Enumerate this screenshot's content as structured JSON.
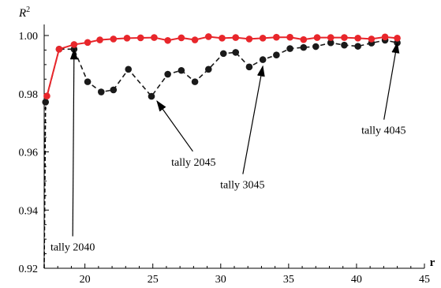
{
  "chart_data": {
    "type": "line",
    "xlabel": "r",
    "ylabel": "R",
    "ylabel_superscript": "2",
    "xlim": [
      17,
      45
    ],
    "ylim": [
      0.92,
      1.0
    ],
    "xticks": [
      20,
      25,
      30,
      35,
      40,
      45
    ],
    "xtick_labels": [
      "20",
      "25",
      "30",
      "35",
      "40",
      "45"
    ],
    "yticks": [
      0.92,
      0.94,
      0.96,
      0.98,
      1.0
    ],
    "ytick_labels": [
      "0.92",
      "0.94",
      "0.96",
      "0.98",
      "1.00"
    ],
    "grid": false,
    "series": [
      {
        "color": "#e8262b",
        "line": "solid",
        "x": [
          17.2,
          18.1,
          19.2,
          20.2,
          21.1,
          22.1,
          23.1,
          24.1,
          25.1,
          26.1,
          27.1,
          28.1,
          29.1,
          30.1,
          31.1,
          32.1,
          33.1,
          34.1,
          35.1,
          36.1,
          37.1,
          38.1,
          39.1,
          40.1,
          41.1,
          42.1,
          43.0
        ],
        "y": [
          0.9792,
          0.9953,
          0.9969,
          0.9976,
          0.9985,
          0.9988,
          0.9991,
          0.9992,
          0.9993,
          0.9983,
          0.9992,
          0.9985,
          0.9996,
          0.9991,
          0.9993,
          0.9988,
          0.9991,
          0.9994,
          0.9994,
          0.9986,
          0.9993,
          0.9993,
          0.9993,
          0.9991,
          0.9988,
          0.9995,
          0.9991
        ]
      },
      {
        "color": "#1a1a1a",
        "line": "dashed",
        "x": [
          17.1,
          18.1,
          19.2,
          20.2,
          21.2,
          22.1,
          23.2,
          24.9,
          26.1,
          27.1,
          28.1,
          29.1,
          30.2,
          31.1,
          32.1,
          33.1,
          34.1,
          35.1,
          36.1,
          37.0,
          38.1,
          39.1,
          40.1,
          41.1,
          42.1,
          43.0
        ],
        "y": [
          0.9771,
          0.9953,
          0.9953,
          0.9841,
          0.9806,
          0.9813,
          0.9884,
          0.9791,
          0.9867,
          0.988,
          0.9841,
          0.9884,
          0.9938,
          0.9942,
          0.9892,
          0.9917,
          0.9933,
          0.9955,
          0.9959,
          0.9962,
          0.9975,
          0.9967,
          0.9963,
          0.9974,
          0.9984,
          0.9975
        ]
      }
    ],
    "initial_drop": {
      "x": [
        17.0,
        17.1
      ],
      "y": [
        0.92,
        0.9771
      ]
    },
    "annotations": [
      {
        "text": "tally 2040",
        "arrow_to": {
          "x": 19.2,
          "y": 0.9953
        },
        "label_at": {
          "x": 19.1,
          "y": 0.9261
        }
      },
      {
        "text": "tally 2045",
        "arrow_to": {
          "x": 25.3,
          "y": 0.9775
        },
        "label_at": {
          "x": 28.0,
          "y": 0.9553
        }
      },
      {
        "text": "tally 3045",
        "arrow_to": {
          "x": 33.1,
          "y": 0.9895
        },
        "label_at": {
          "x": 31.6,
          "y": 0.9475
        }
      },
      {
        "text": "tally 4045",
        "arrow_to": {
          "x": 43.0,
          "y": 0.9975
        },
        "label_at": {
          "x": 42.0,
          "y": 0.9662
        }
      }
    ]
  }
}
